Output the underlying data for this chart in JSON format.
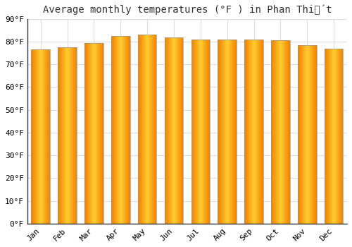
{
  "title": "Average monthly temperatures (°F ) in Phan Thiế́t",
  "months": [
    "Jan",
    "Feb",
    "Mar",
    "Apr",
    "May",
    "Jun",
    "Jul",
    "Aug",
    "Sep",
    "Oct",
    "Nov",
    "Dec"
  ],
  "values": [
    76.5,
    77.5,
    79.5,
    82.5,
    83.0,
    82.0,
    81.0,
    81.0,
    81.0,
    80.5,
    78.5,
    77.0
  ],
  "bar_color_center": "#FFB300",
  "bar_color_edge": "#F08000",
  "bar_color_bright": "#FFD050",
  "background_color": "#FFFFFF",
  "plot_bg_color": "#FFFFFF",
  "grid_color": "#DDDDDD",
  "ylim": [
    0,
    90
  ],
  "yticks": [
    0,
    10,
    20,
    30,
    40,
    50,
    60,
    70,
    80,
    90
  ],
  "tick_label_suffix": "°F",
  "title_fontsize": 10,
  "tick_fontsize": 8,
  "axis_label_fontsize": 8,
  "bar_width": 0.7
}
